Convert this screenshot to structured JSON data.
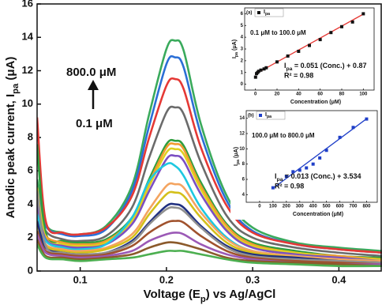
{
  "chart_data": [
    {
      "type": "line",
      "xlabel": [
        "Voltage (E",
        "p",
        ") vs Ag/AgCl"
      ],
      "ylabel": [
        "Anodic peak current, I",
        "pa",
        " (μA)"
      ],
      "annotations": [
        "800.0 μM",
        "0.1 μM"
      ],
      "xlim": [
        0.05,
        0.45
      ],
      "ylim": [
        0,
        16
      ],
      "xticks": [
        0.1,
        0.2,
        0.3,
        0.4
      ],
      "yticks": [
        0,
        2,
        4,
        6,
        8,
        10,
        12,
        14,
        16
      ],
      "x": [
        0.05,
        0.06,
        0.08,
        0.1,
        0.13,
        0.16,
        0.18,
        0.2,
        0.21,
        0.22,
        0.24,
        0.27,
        0.3,
        0.35,
        0.4,
        0.45
      ],
      "series": [
        {
          "color": "#3aaa5c",
          "values": [
            5.5,
            2.8,
            2.3,
            2.2,
            2.7,
            5.1,
            9.4,
            13.3,
            13.8,
            13.2,
            8.8,
            4.5,
            2.6,
            1.7,
            1.4,
            1.2
          ]
        },
        {
          "color": "#2b6fd6",
          "values": [
            5.0,
            2.7,
            2.2,
            2.1,
            2.5,
            4.8,
            8.7,
            12.4,
            12.8,
            12.2,
            8.2,
            4.2,
            2.4,
            1.6,
            1.3,
            1.1
          ]
        },
        {
          "color": "#e53935",
          "values": [
            9.2,
            3.0,
            2.3,
            2.2,
            2.6,
            4.5,
            8.0,
            11.1,
            11.5,
            10.9,
            7.4,
            3.9,
            2.3,
            1.6,
            1.3,
            1.1
          ]
        },
        {
          "color": "#6b6b6b",
          "values": [
            4.2,
            2.4,
            1.9,
            1.8,
            2.1,
            3.8,
            6.8,
            9.5,
            9.8,
            9.4,
            6.5,
            3.3,
            2.0,
            1.4,
            1.1,
            0.9
          ]
        },
        {
          "color": "#2e9e3e",
          "values": [
            7.6,
            2.3,
            1.8,
            1.7,
            1.9,
            3.2,
            5.5,
            7.6,
            7.8,
            7.5,
            5.3,
            2.8,
            1.7,
            1.2,
            0.9,
            0.8
          ]
        },
        {
          "color": "#f29b30",
          "values": [
            3.6,
            2.1,
            1.7,
            1.6,
            1.8,
            3.1,
            5.3,
            7.4,
            7.6,
            7.3,
            5.1,
            2.7,
            1.6,
            1.1,
            0.9,
            0.7
          ]
        },
        {
          "color": "#e0d020",
          "values": [
            5.0,
            2.0,
            1.6,
            1.5,
            1.7,
            3.0,
            5.1,
            7.1,
            7.3,
            7.0,
            4.9,
            2.5,
            1.5,
            1.1,
            0.8,
            0.7
          ]
        },
        {
          "color": "#7b4fc2",
          "values": [
            4.0,
            1.9,
            1.5,
            1.4,
            1.6,
            2.8,
            4.8,
            6.7,
            6.9,
            6.6,
            4.6,
            2.4,
            1.4,
            1.0,
            0.8,
            0.6
          ]
        },
        {
          "color": "#1ec8e0",
          "values": [
            3.4,
            1.8,
            1.4,
            1.3,
            1.6,
            3.2,
            5.4,
            6.4,
            6.3,
            5.7,
            3.8,
            2.0,
            1.2,
            0.9,
            0.7,
            0.6
          ]
        },
        {
          "color": "#f4a460",
          "values": [
            3.0,
            1.6,
            1.3,
            1.2,
            1.4,
            2.2,
            3.7,
            5.1,
            5.2,
            5.0,
            3.5,
            1.9,
            1.2,
            0.9,
            0.7,
            0.6
          ]
        },
        {
          "color": "#d4c01a",
          "values": [
            2.8,
            1.5,
            1.2,
            1.1,
            1.3,
            2.0,
            3.4,
            4.6,
            4.7,
            4.5,
            3.2,
            1.7,
            1.1,
            0.8,
            0.6,
            0.5
          ]
        },
        {
          "color": "#203080",
          "values": [
            3.0,
            1.4,
            1.1,
            1.0,
            1.1,
            1.8,
            2.9,
            3.9,
            4.0,
            3.8,
            2.7,
            1.5,
            1.0,
            0.8,
            0.6,
            0.5
          ]
        },
        {
          "color": "#909090",
          "values": [
            4.8,
            1.5,
            1.1,
            1.0,
            1.1,
            1.7,
            2.8,
            3.7,
            3.8,
            3.6,
            2.6,
            1.4,
            0.9,
            0.7,
            0.6,
            0.5
          ]
        },
        {
          "color": "#a0522d",
          "values": [
            2.4,
            1.2,
            1.0,
            0.9,
            1.0,
            1.5,
            2.3,
            2.9,
            3.0,
            2.9,
            2.1,
            1.2,
            0.8,
            0.6,
            0.5,
            0.4
          ]
        },
        {
          "color": "#9b59b6",
          "values": [
            2.2,
            1.1,
            0.9,
            0.8,
            0.9,
            1.2,
            1.8,
            2.2,
            2.3,
            2.2,
            1.6,
            1.0,
            0.7,
            0.5,
            0.4,
            0.4
          ]
        },
        {
          "color": "#8b5a2b",
          "values": [
            1.9,
            0.9,
            0.8,
            0.7,
            0.8,
            1.0,
            1.4,
            1.7,
            1.7,
            1.6,
            1.3,
            0.8,
            0.6,
            0.5,
            0.4,
            0.3
          ]
        },
        {
          "color": "#4caf50",
          "values": [
            1.6,
            0.8,
            0.7,
            0.6,
            0.7,
            0.8,
            1.0,
            1.2,
            1.2,
            1.2,
            1.0,
            0.7,
            0.5,
            0.4,
            0.3,
            0.3
          ]
        }
      ]
    },
    {
      "type": "scatter",
      "panel": "(a)",
      "range_text": "0.1 μM to 100.0 μM",
      "equation": [
        "I",
        "pa",
        " = 0.051 (Conc.) + 0.87"
      ],
      "r2": "R² = 0.98",
      "fit": {
        "slope": 0.051,
        "intercept": 0.87,
        "color": "#e53935"
      },
      "text_color": "#e53935",
      "xlabel": "Concentration (μM)",
      "ylabel": [
        "I",
        "pa",
        " (μA)"
      ],
      "xlim": [
        -10,
        110
      ],
      "ylim": [
        -0.5,
        6.5
      ],
      "xticks": [
        0,
        20,
        40,
        60,
        80,
        100
      ],
      "yticks": [
        0,
        1,
        2,
        3,
        4,
        5,
        6
      ],
      "x": [
        0.1,
        1,
        2,
        3,
        5,
        8,
        10,
        20,
        30,
        40,
        50,
        60,
        70,
        80,
        90,
        100
      ],
      "series": [
        {
          "name": [
            "I",
            "pa"
          ],
          "color": "#111111",
          "values": [
            0.6,
            0.9,
            1.0,
            1.1,
            1.2,
            1.3,
            1.4,
            1.9,
            2.4,
            2.8,
            3.3,
            3.8,
            4.4,
            4.9,
            5.3,
            6.0
          ]
        }
      ]
    },
    {
      "type": "scatter",
      "panel": "(b)",
      "range_text": "100.0 μM to 800.0 μM",
      "equation": [
        "I",
        "pa",
        " = 0.013 (Conc.) + 3.534"
      ],
      "r2": "R² = 0.98",
      "fit": {
        "slope": 0.013,
        "intercept": 3.534,
        "color": "#1f3fc8"
      },
      "text_color": "#1f2f9f",
      "xlabel": "Concentration (μM)",
      "ylabel": [
        "I",
        "pa",
        " (μA)"
      ],
      "xlim": [
        -100,
        880
      ],
      "ylim": [
        3,
        15
      ],
      "xticks": [
        0,
        100,
        200,
        300,
        400,
        500,
        600,
        700,
        800
      ],
      "yticks": [
        4,
        6,
        8,
        10,
        12,
        14
      ],
      "x": [
        100,
        200,
        250,
        300,
        350,
        400,
        450,
        500,
        600,
        700,
        800
      ],
      "series": [
        {
          "name": [
            "I",
            "pa"
          ],
          "color": "#1f3fc8",
          "values": [
            4.9,
            6.4,
            7.0,
            7.2,
            7.5,
            8.0,
            8.8,
            9.8,
            11.5,
            12.8,
            13.9
          ]
        }
      ]
    }
  ]
}
